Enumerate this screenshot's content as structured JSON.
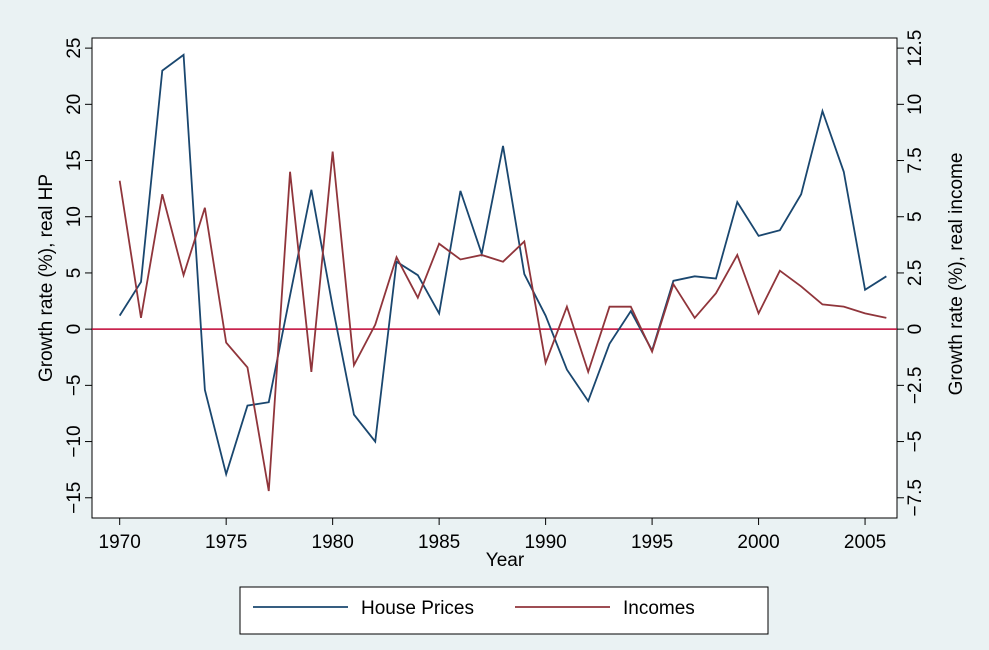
{
  "chart_data": {
    "type": "line",
    "x_label": "Year",
    "y_label": "Growth rate (%), real HP",
    "y2_label": "Growth rate (%), real income",
    "x": [
      1970,
      1971,
      1972,
      1973,
      1974,
      1975,
      1976,
      1977,
      1978,
      1979,
      1980,
      1981,
      1982,
      1983,
      1984,
      1985,
      1986,
      1987,
      1988,
      1989,
      1990,
      1991,
      1992,
      1993,
      1994,
      1995,
      1996,
      1997,
      1998,
      1999,
      2000,
      2001,
      2002,
      2003,
      2004,
      2005,
      2006
    ],
    "series": [
      {
        "name": "House Prices",
        "color": "#1a476f",
        "axis": "y",
        "values": [
          1.2,
          4.2,
          23.0,
          24.4,
          -5.4,
          -12.9,
          -6.8,
          -6.5,
          3.0,
          12.4,
          2.0,
          -7.6,
          -10.0,
          6.0,
          4.8,
          1.4,
          12.3,
          6.7,
          16.3,
          4.9,
          1.2,
          -3.6,
          -6.4,
          -1.3,
          1.6,
          -1.9,
          4.3,
          4.7,
          4.5,
          11.3,
          8.3,
          8.8,
          12.0,
          19.4,
          14.0,
          3.5,
          4.7
        ]
      },
      {
        "name": "Incomes",
        "color": "#90353b",
        "axis": "y2",
        "values": [
          6.6,
          0.5,
          6.0,
          2.4,
          5.4,
          -0.6,
          -1.7,
          -7.2,
          7.0,
          -1.9,
          7.9,
          -1.6,
          0.2,
          3.2,
          1.4,
          3.8,
          3.1,
          3.3,
          3.0,
          3.9,
          -1.5,
          1.0,
          -1.9,
          1.0,
          1.0,
          -1.0,
          2.0,
          0.5,
          1.6,
          3.3,
          0.7,
          2.6,
          1.9,
          1.1,
          1.0,
          0.7,
          0.5
        ]
      }
    ],
    "xlim": [
      1968.7,
      2006.5
    ],
    "xticks": [
      1970,
      1975,
      1980,
      1985,
      1990,
      1995,
      2000,
      2005
    ],
    "ylim": [
      -16.8,
      25.9
    ],
    "yticks": [
      {
        "value": -15,
        "label": "−15"
      },
      {
        "value": -10,
        "label": "−10"
      },
      {
        "value": -5,
        "label": "−5"
      },
      0,
      5,
      10,
      15,
      20,
      25
    ],
    "y2lim": [
      -8.4,
      12.95
    ],
    "y2ticks": [
      {
        "value": -7.5,
        "label": "−7.5"
      },
      {
        "value": -5,
        "label": "−5"
      },
      {
        "value": -2.5,
        "label": "−2.5"
      },
      0,
      2.5,
      5,
      7.5,
      10,
      12.5
    ],
    "yline": 0,
    "yline_color": "#c10534",
    "legend": "bottom"
  }
}
